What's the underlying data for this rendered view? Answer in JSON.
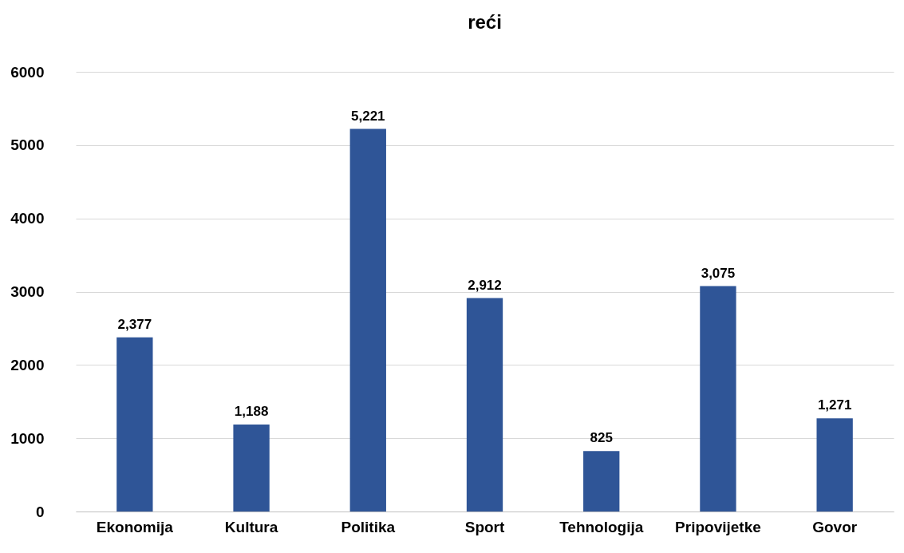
{
  "chart_data": {
    "type": "bar",
    "title": "reći",
    "categories": [
      "Ekonomija",
      "Kultura",
      "Politika",
      "Sport",
      "Tehnologija",
      "Pripovijetke",
      "Govor"
    ],
    "values": [
      2377,
      1188,
      5221,
      2912,
      825,
      3075,
      1271
    ],
    "value_labels": [
      "2,377",
      "1,188",
      "5,221",
      "2,912",
      "825",
      "3,075",
      "1,271"
    ],
    "color": "#2f5597",
    "ylim": [
      0,
      6000
    ],
    "yticks": [
      0,
      1000,
      2000,
      3000,
      4000,
      5000,
      6000
    ],
    "grid": "y"
  }
}
